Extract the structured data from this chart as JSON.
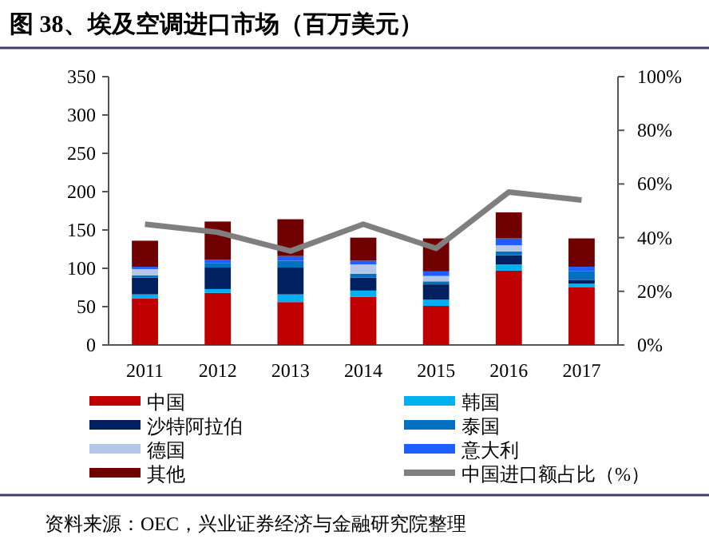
{
  "chart_data": {
    "type": "bar",
    "title": "图 38、埃及空调进口市场（百万美元）",
    "categories": [
      "2011",
      "2012",
      "2013",
      "2014",
      "2015",
      "2016",
      "2017"
    ],
    "stacked": true,
    "series": [
      {
        "name": "中国",
        "color": "#c00000",
        "values": [
          61,
          68,
          56,
          63,
          51,
          97,
          75
        ]
      },
      {
        "name": "韩国",
        "color": "#00b0f0",
        "values": [
          5,
          5,
          10,
          8,
          8,
          8,
          5
        ]
      },
      {
        "name": "沙特阿拉伯",
        "color": "#002060",
        "values": [
          22,
          28,
          35,
          17,
          20,
          12,
          5
        ]
      },
      {
        "name": "泰国",
        "color": "#0070c0",
        "values": [
          3,
          6,
          9,
          5,
          4,
          5,
          11
        ]
      },
      {
        "name": "德国",
        "color": "#b4c7e7",
        "values": [
          8,
          null,
          null,
          12,
          7,
          8,
          null
        ]
      },
      {
        "name": "意大利",
        "color": "#1f5fff",
        "values": [
          3,
          4,
          6,
          5,
          6,
          9,
          6
        ]
      },
      {
        "name": "其他",
        "color": "#700000",
        "values": [
          34,
          50,
          48,
          30,
          43,
          34,
          37
        ]
      },
      {
        "name": "中国进口额占比（%）",
        "type": "line",
        "axis": "y2",
        "color": "#7f7f7f",
        "values": [
          45,
          42,
          35,
          45,
          36,
          57,
          54
        ]
      }
    ],
    "ylim": [
      0,
      350
    ],
    "yticks": [
      0,
      50,
      100,
      150,
      200,
      250,
      300,
      350
    ],
    "y2lim": [
      0,
      100
    ],
    "y2ticks": [
      {
        "value": 0,
        "label": "0%"
      },
      {
        "value": 20,
        "label": "20%"
      },
      {
        "value": 40,
        "label": "40%"
      },
      {
        "value": 60,
        "label": "60%"
      },
      {
        "value": 80,
        "label": "80%"
      },
      {
        "value": 100,
        "label": "100%"
      }
    ],
    "legend": "bottom",
    "grid": false,
    "annotations": [
      "资料来源：OEC，兴业证券经济与金融研究院整理"
    ]
  }
}
